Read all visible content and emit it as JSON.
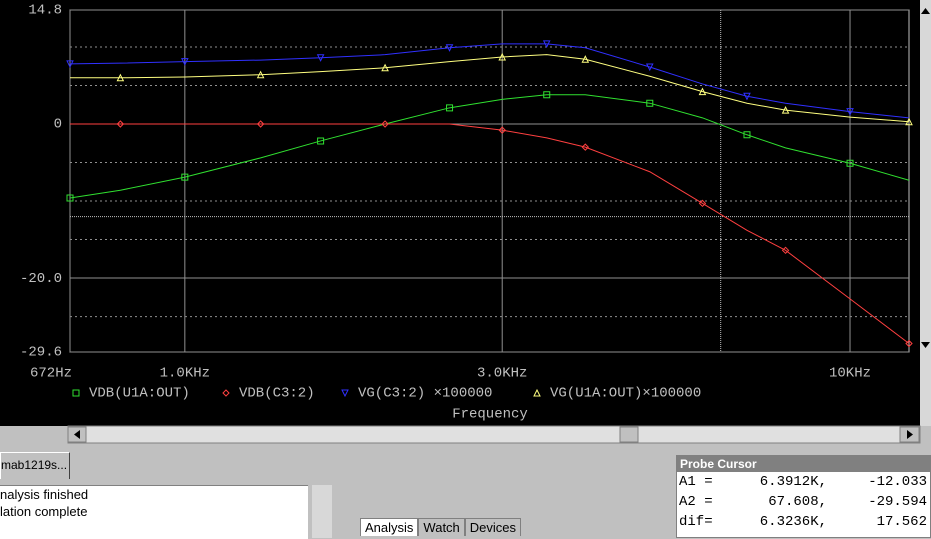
{
  "chart_data": {
    "type": "line",
    "xscale": "log",
    "x": [
      672,
      800,
      1000,
      1300,
      1600,
      2000,
      2500,
      3000,
      3500,
      4000,
      5000,
      6000,
      7000,
      8000,
      10000,
      12265
    ],
    "series": [
      {
        "name": "VDB(U1A:OUT)",
        "color": "#30e030",
        "marker": "square",
        "values": [
          -9.6,
          -8.6,
          -6.9,
          -4.4,
          -2.2,
          0,
          2.1,
          3.2,
          3.8,
          3.8,
          2.7,
          0.8,
          -1.4,
          -3.1,
          -5.1,
          -7.3
        ]
      },
      {
        "name": "VDB(C3:2)",
        "color": "#ff4040",
        "marker": "diamond",
        "values": [
          0,
          0,
          0,
          0,
          0,
          0,
          0,
          -0.8,
          -1.8,
          -3.0,
          -6.2,
          -10.3,
          -13.8,
          -16.4,
          -22.7,
          -28.5
        ]
      },
      {
        "name": "VG(C3:2) ×100000",
        "color": "#3030ff",
        "marker": "triangle-down",
        "values": [
          7.8,
          7.9,
          8.1,
          8.3,
          8.6,
          9.0,
          9.9,
          10.4,
          10.4,
          9.9,
          7.4,
          5.2,
          3.6,
          2.7,
          1.6,
          0.8
        ]
      },
      {
        "name": "VG(U1A:OUT)×100000",
        "color": "#ffff80",
        "marker": "triangle-up",
        "values": [
          6.0,
          6.0,
          6.1,
          6.4,
          6.8,
          7.3,
          8.1,
          8.7,
          9.0,
          8.4,
          6.2,
          4.2,
          2.7,
          1.8,
          0.9,
          0.3
        ]
      }
    ],
    "xlim": [
      672,
      12265
    ],
    "ylim": [
      -29.6,
      14.8
    ],
    "xticks": [
      {
        "value": 672,
        "label": "672Hz"
      },
      {
        "value": 1000,
        "label": "1.0KHz"
      },
      {
        "value": 3000,
        "label": "3.0KHz"
      },
      {
        "value": 10000,
        "label": "10KHz"
      }
    ],
    "yticks": [
      14.8,
      0,
      {
        "value": -20,
        "label": "-20.0"
      },
      -29.6
    ],
    "minor_yticks": [
      10,
      5,
      -5,
      -10,
      -15,
      -25
    ],
    "cursor": {
      "x": 6391.2,
      "y": -12.033
    },
    "xlabel": "Frequency",
    "grid": true
  },
  "ui": {
    "tab": "mab1219s...",
    "output_lines": [
      "nalysis finished",
      "lation complete"
    ],
    "bottom_tabs": [
      "Analysis",
      "Watch",
      "Devices"
    ],
    "probe_cursor": {
      "title": "Probe Cursor",
      "rows": [
        [
          "A1 =",
          "6.3912K,",
          "-12.033"
        ],
        [
          "A2 =",
          "67.608,",
          "-29.594"
        ],
        [
          "dif=",
          "6.3236K,",
          "17.562"
        ]
      ]
    }
  }
}
